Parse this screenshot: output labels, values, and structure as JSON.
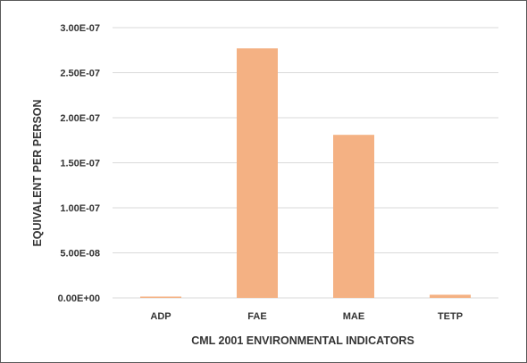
{
  "chart_data": {
    "type": "bar",
    "title": "",
    "xlabel": "CML 2001 ENVIRONMENTAL INDICATORS",
    "ylabel": "EQUIVALENT PER PERSON",
    "categories": [
      "ADP",
      "FAE",
      "MAE",
      "TETP"
    ],
    "values": [
      1e-09,
      2.77e-07,
      1.81e-07,
      3.5e-09
    ],
    "ylim": [
      0,
      3e-07
    ],
    "yticks": [
      "0.00E+00",
      "5.00E-08",
      "1.00E-07",
      "1.50E-07",
      "2.00E-07",
      "2.50E-07",
      "3.00E-07"
    ],
    "grid": true,
    "legend": "none",
    "bar_color": "#F4B183",
    "grid_color": "#D9D9D9"
  }
}
